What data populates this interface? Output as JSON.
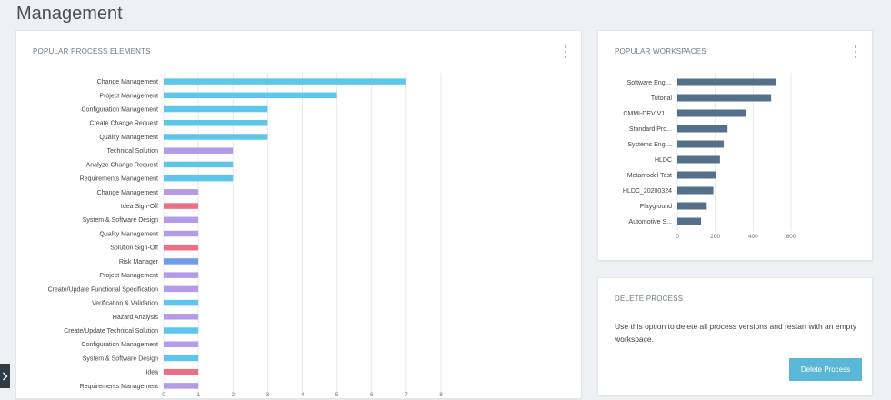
{
  "page": {
    "title": "Management"
  },
  "popular_elements": {
    "title": "POPULAR PROCESS ELEMENTS",
    "menu_icon": "kebab-vertical-icon"
  },
  "popular_workspaces": {
    "title": "POPULAR WORKSPACES",
    "menu_icon": "kebab-vertical-icon"
  },
  "delete_process": {
    "title": "DELETE PROCESS",
    "description": "Use this option to delete all process versions and restart with an empty workspace.",
    "button_label": "Delete Process"
  },
  "sidebar_toggle": {
    "icon": "chevron-right-icon"
  },
  "colors": {
    "blue": "#5ec6ea",
    "purple": "#b49be8",
    "red": "#ee6f83",
    "mid_blue": "#6f9ce8",
    "slate": "#55708a",
    "button": "#5bb7d6"
  },
  "chart_data": [
    {
      "type": "bar",
      "orientation": "horizontal",
      "title": "POPULAR PROCESS ELEMENTS",
      "categories": [
        "Change Management",
        "Project Management",
        "Configuration Management",
        "Create Change Request",
        "Quality Management",
        "Technical Solution",
        "Analyze Change Request",
        "Requirements Management",
        "Change Management",
        "Idea Sign-Off",
        "System & Software Design",
        "Quality Management",
        "Solution Sign-Off",
        "Risk Manager",
        "Project Management",
        "Create/Update Functional Specification",
        "Verification & Validation",
        "Hazard Analysis",
        "Create/Update Technical Solution",
        "Configuration Management",
        "System & Software Design",
        "Idea",
        "Requirements Management"
      ],
      "values": [
        7,
        5,
        3,
        3,
        3,
        2,
        2,
        2,
        1,
        1,
        1,
        1,
        1,
        1,
        1,
        1,
        1,
        1,
        1,
        1,
        1,
        1,
        1
      ],
      "colors": [
        "blue",
        "blue",
        "blue",
        "blue",
        "blue",
        "purple",
        "blue",
        "blue",
        "purple",
        "red",
        "purple",
        "purple",
        "red",
        "mid_blue",
        "purple",
        "purple",
        "blue",
        "purple",
        "blue",
        "purple",
        "blue",
        "red",
        "purple"
      ],
      "xticks": [
        0,
        1,
        2,
        3,
        4,
        5,
        6,
        7,
        8
      ],
      "xlim": [
        0,
        8
      ],
      "grid": true
    },
    {
      "type": "bar",
      "orientation": "horizontal",
      "title": "POPULAR WORKSPACES",
      "categories": [
        "Software Engi...",
        "Tutorial",
        "CMMI-DEV V1....",
        "Standard Pro...",
        "Systems Engi...",
        "HLDC",
        "Metamodel Test",
        "HLDC_20200324",
        "Playground",
        "Automotive S..."
      ],
      "values": [
        520,
        495,
        360,
        265,
        245,
        225,
        205,
        190,
        155,
        125
      ],
      "xticks": [
        0,
        200,
        400,
        600
      ],
      "xlim": [
        0,
        600
      ],
      "grid": true
    }
  ]
}
